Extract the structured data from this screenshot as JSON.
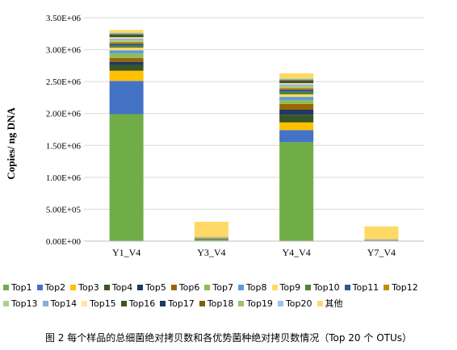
{
  "chart_data": {
    "type": "bar",
    "stacked": true,
    "ylabel": "Copies/ ng DNA",
    "ylim": [
      0,
      3500000
    ],
    "ytick_labels": [
      "0.00E+00",
      "5.00E+05",
      "1.00E+06",
      "1.50E+06",
      "2.00E+06",
      "2.50E+06",
      "3.00E+06",
      "3.50E+06"
    ],
    "yticks": [
      0,
      500000,
      1000000,
      1500000,
      2000000,
      2500000,
      3000000,
      3500000
    ],
    "categories": [
      "Y1_V4",
      "Y3_V4",
      "Y4_V4",
      "Y7_V4"
    ],
    "legend_position": "bottom",
    "series": [
      {
        "name": "Top1",
        "color": "#70ad47",
        "values": [
          1990000,
          20000,
          1550000,
          5000
        ]
      },
      {
        "name": "Top2",
        "color": "#4472c4",
        "values": [
          520000,
          5000,
          190000,
          2000
        ]
      },
      {
        "name": "Top3",
        "color": "#ffc000",
        "values": [
          160000,
          5000,
          120000,
          2000
        ]
      },
      {
        "name": "Top4",
        "color": "#375623",
        "values": [
          90000,
          8000,
          120000,
          3000
        ]
      },
      {
        "name": "Top5",
        "color": "#203864",
        "values": [
          50000,
          3000,
          80000,
          2000
        ]
      },
      {
        "name": "Top6",
        "color": "#9c6500",
        "values": [
          60000,
          3000,
          90000,
          2000
        ]
      },
      {
        "name": "Top7",
        "color": "#8fbc5b",
        "values": [
          70000,
          3000,
          60000,
          2000
        ]
      },
      {
        "name": "Top8",
        "color": "#5b9bd5",
        "values": [
          50000,
          2000,
          50000,
          1000
        ]
      },
      {
        "name": "Top9",
        "color": "#ffd966",
        "values": [
          40000,
          2000,
          40000,
          1000
        ]
      },
      {
        "name": "Top10",
        "color": "#548235",
        "values": [
          35000,
          2000,
          40000,
          1000
        ]
      },
      {
        "name": "Top11",
        "color": "#2f5597",
        "values": [
          30000,
          2000,
          35000,
          1000
        ]
      },
      {
        "name": "Top12",
        "color": "#bf9000",
        "values": [
          30000,
          2000,
          30000,
          1000
        ]
      },
      {
        "name": "Top13",
        "color": "#a9d18e",
        "values": [
          25000,
          2000,
          25000,
          1000
        ]
      },
      {
        "name": "Top14",
        "color": "#8faadc",
        "values": [
          25000,
          2000,
          25000,
          1000
        ]
      },
      {
        "name": "Top15",
        "color": "#ffe699",
        "values": [
          20000,
          2000,
          20000,
          1000
        ]
      },
      {
        "name": "Top16",
        "color": "#385723",
        "values": [
          20000,
          1000,
          20000,
          1000
        ]
      },
      {
        "name": "Top17",
        "color": "#1f3864",
        "values": [
          15000,
          1000,
          15000,
          1000
        ]
      },
      {
        "name": "Top18",
        "color": "#7f6000",
        "values": [
          15000,
          1000,
          15000,
          1000
        ]
      },
      {
        "name": "Top19",
        "color": "#9dc36b",
        "values": [
          15000,
          1000,
          15000,
          1000
        ]
      },
      {
        "name": "Top20",
        "color": "#9dc3e6",
        "values": [
          10000,
          1000,
          10000,
          1000
        ]
      },
      {
        "name": "其他",
        "color": "#ffd966",
        "values": [
          40000,
          235000,
          80000,
          200000
        ]
      }
    ]
  },
  "caption": "图 2 每个样品的总细菌绝对拷贝数和各优势菌种绝对拷贝数情况（Top 20 个 OTUs）"
}
